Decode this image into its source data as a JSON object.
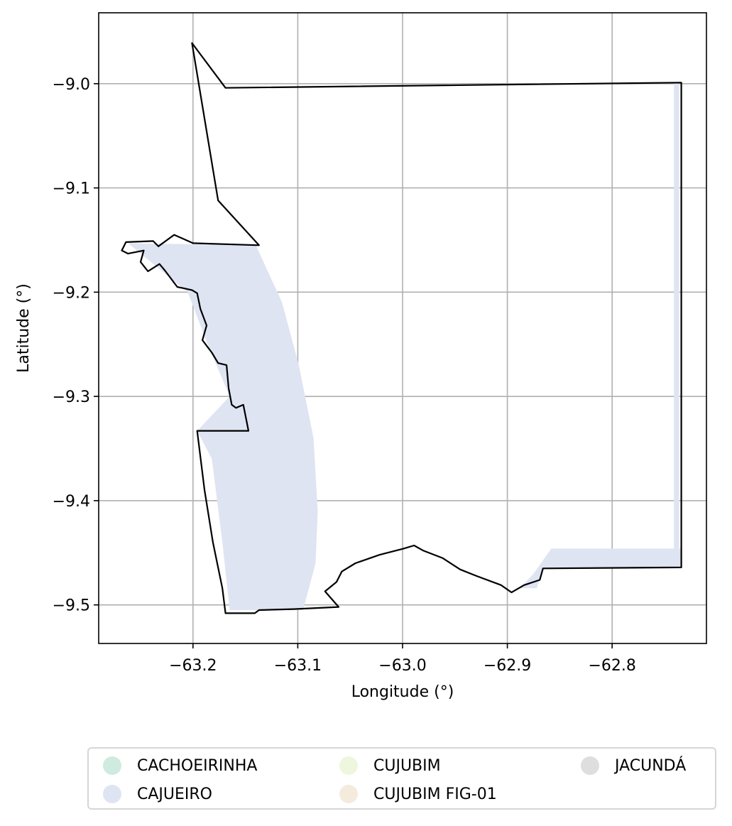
{
  "chart_data": {
    "type": "map",
    "xlabel": "Longitude (°)",
    "ylabel": "Latitude (°)",
    "xlim": [
      -63.29,
      -62.71
    ],
    "ylim": [
      -9.537,
      -8.932
    ],
    "xticks": [
      -63.2,
      -63.1,
      -63.0,
      -62.9,
      -62.8
    ],
    "xtick_labels": [
      "−63.2",
      "−63.1",
      "−63.0",
      "−62.9",
      "−62.8"
    ],
    "yticks": [
      -9.0,
      -9.1,
      -9.2,
      -9.3,
      -9.4,
      -9.5
    ],
    "ytick_labels": [
      "−9.0",
      "−9.1",
      "−9.2",
      "−9.3",
      "−9.4",
      "−9.5"
    ],
    "grid": true,
    "legend_placement": "bottom-center, outside plot",
    "legend": [
      {
        "name": "CACHOEIRINHA",
        "color": "#cfeadf"
      },
      {
        "name": "CAJUEIRO",
        "color": "#dfe4f2"
      },
      {
        "name": "CUJUBIM",
        "color": "#eef6de"
      },
      {
        "name": "CUJUBIM FIG-01",
        "color": "#f4ebdd"
      },
      {
        "name": "JACUNDÁ",
        "color": "#dedede"
      }
    ],
    "boundary_outline": [
      [
        -63.201,
        -8.961
      ],
      [
        -63.169,
        -9.004
      ],
      [
        -62.734,
        -8.999
      ],
      [
        -62.734,
        -9.464
      ],
      [
        -62.866,
        -9.465
      ],
      [
        -62.869,
        -9.476
      ],
      [
        -62.884,
        -9.481
      ],
      [
        -62.896,
        -9.488
      ],
      [
        -62.906,
        -9.481
      ],
      [
        -62.93,
        -9.472
      ],
      [
        -62.945,
        -9.466
      ],
      [
        -62.962,
        -9.455
      ],
      [
        -62.98,
        -9.448
      ],
      [
        -62.989,
        -9.443
      ],
      [
        -62.999,
        -9.446
      ],
      [
        -63.022,
        -9.452
      ],
      [
        -63.045,
        -9.46
      ],
      [
        -63.058,
        -9.468
      ],
      [
        -63.063,
        -9.478
      ],
      [
        -63.074,
        -9.487
      ],
      [
        -63.061,
        -9.502
      ],
      [
        -63.104,
        -9.504
      ],
      [
        -63.137,
        -9.505
      ],
      [
        -63.141,
        -9.508
      ],
      [
        -63.169,
        -9.508
      ],
      [
        -63.172,
        -9.484
      ],
      [
        -63.181,
        -9.44
      ],
      [
        -63.189,
        -9.39
      ],
      [
        -63.196,
        -9.333
      ],
      [
        -63.147,
        -9.333
      ],
      [
        -63.152,
        -9.308
      ],
      [
        -63.159,
        -9.311
      ],
      [
        -63.163,
        -9.308
      ],
      [
        -63.166,
        -9.292
      ],
      [
        -63.168,
        -9.27
      ],
      [
        -63.176,
        -9.268
      ],
      [
        -63.182,
        -9.258
      ],
      [
        -63.191,
        -9.246
      ],
      [
        -63.187,
        -9.232
      ],
      [
        -63.193,
        -9.216
      ],
      [
        -63.196,
        -9.201
      ],
      [
        -63.201,
        -9.198
      ],
      [
        -63.215,
        -9.195
      ],
      [
        -63.227,
        -9.179
      ],
      [
        -63.232,
        -9.173
      ],
      [
        -63.243,
        -9.18
      ],
      [
        -63.25,
        -9.171
      ],
      [
        -63.247,
        -9.16
      ],
      [
        -63.262,
        -9.163
      ],
      [
        -63.268,
        -9.16
      ],
      [
        -63.264,
        -9.152
      ],
      [
        -63.238,
        -9.151
      ],
      [
        -63.233,
        -9.156
      ],
      [
        -63.218,
        -9.145
      ],
      [
        -63.2,
        -9.153
      ],
      [
        -63.137,
        -9.155
      ],
      [
        -63.176,
        -9.112
      ],
      [
        -63.201,
        -8.961
      ]
    ],
    "cajueiro_region": [
      [
        -63.262,
        -9.153
      ],
      [
        -63.14,
        -9.155
      ],
      [
        -63.115,
        -9.21
      ],
      [
        -63.099,
        -9.27
      ],
      [
        -63.085,
        -9.34
      ],
      [
        -63.081,
        -9.41
      ],
      [
        -63.083,
        -9.46
      ],
      [
        -63.095,
        -9.505
      ],
      [
        -63.165,
        -9.505
      ],
      [
        -63.172,
        -9.44
      ],
      [
        -63.182,
        -9.36
      ],
      [
        -63.196,
        -9.333
      ],
      [
        -63.165,
        -9.3
      ],
      [
        -63.186,
        -9.25
      ],
      [
        -63.205,
        -9.2
      ]
    ],
    "cajueiro_southeast": [
      [
        -62.858,
        -9.446
      ],
      [
        -62.734,
        -9.446
      ],
      [
        -62.734,
        -9.464
      ],
      [
        -62.866,
        -9.465
      ],
      [
        -62.872,
        -9.484
      ],
      [
        -62.888,
        -9.484
      ],
      [
        -62.875,
        -9.47
      ]
    ],
    "cajueiro_east_strip": [
      [
        -62.741,
        -9.0
      ],
      [
        -62.736,
        -9.0
      ],
      [
        -62.736,
        -9.446
      ],
      [
        -62.741,
        -9.446
      ]
    ]
  }
}
